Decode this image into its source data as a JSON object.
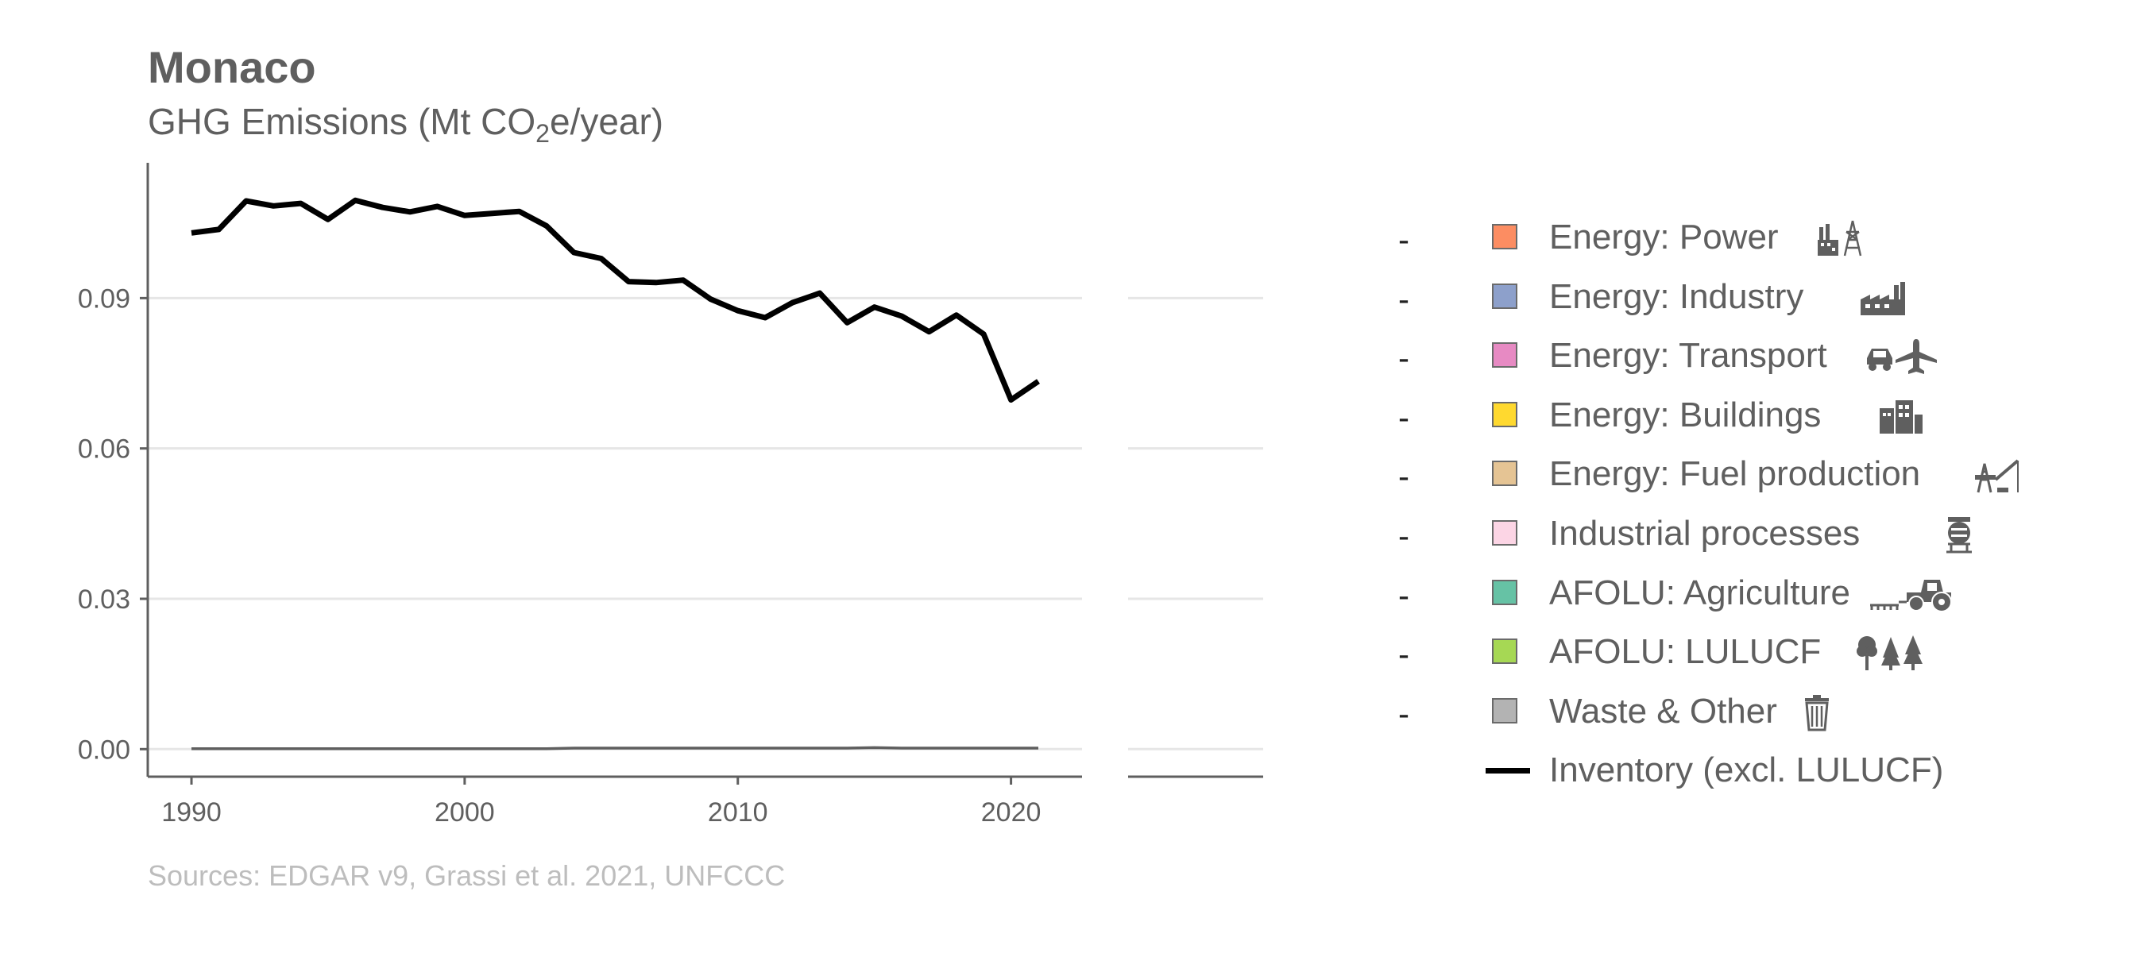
{
  "header": {
    "title": "Monaco",
    "subtitle_prefix": "GHG Emissions (Mt CO",
    "subtitle_sub": "2",
    "subtitle_suffix": "e/year)"
  },
  "footer": {
    "source": "Sources: EDGAR v9, Grassi et al. 2021, UNFCCC"
  },
  "legend": {
    "items": [
      {
        "dash": "-",
        "label": "Energy: Power",
        "color": "#fc8d62",
        "icon": "power-plant-icon"
      },
      {
        "dash": "-",
        "label": "Energy: Industry",
        "color": "#8da0cb",
        "icon": "factory-icon"
      },
      {
        "dash": "-",
        "label": "Energy: Transport",
        "color": "#e78ac3",
        "icon": "car-plane-icon"
      },
      {
        "dash": "-",
        "label": "Energy: Buildings",
        "color": "#ffd92f",
        "icon": "buildings-icon"
      },
      {
        "dash": "-",
        "label": "Energy: Fuel production",
        "color": "#e5c494",
        "icon": "oil-rig-icon"
      },
      {
        "dash": "-",
        "label": "Industrial processes",
        "color": "#fcd5e5",
        "icon": "cement-mixer-icon"
      },
      {
        "dash": "-",
        "label": "AFOLU: Agriculture",
        "color": "#66c2a5",
        "icon": "tractor-icon"
      },
      {
        "dash": "-",
        "label": "AFOLU: LULUCF",
        "color": "#a6d854",
        "icon": "trees-icon"
      },
      {
        "dash": "-",
        "label": "Waste & Other",
        "color": "#b3b3b3",
        "icon": "trash-icon"
      }
    ],
    "inventory_label": "Inventory (excl. LULUCF)"
  },
  "chart_data": {
    "type": "line",
    "title": "Monaco",
    "subtitle": "GHG Emissions (Mt CO2e/year)",
    "xlabel": "",
    "ylabel": "",
    "xlim": [
      1988.4,
      2022.6
    ],
    "ylim": [
      -0.0055,
      0.117
    ],
    "x_ticks": [
      1990,
      2000,
      2010,
      2020
    ],
    "y_ticks": [
      0.0,
      0.03,
      0.06,
      0.09
    ],
    "y_tick_labels": [
      "0.00",
      "0.03",
      "0.06",
      "0.09"
    ],
    "grid": "horizontal major",
    "legend_position": "right",
    "x": [
      1990,
      1991,
      1992,
      1993,
      1994,
      1995,
      1996,
      1997,
      1998,
      1999,
      2000,
      2001,
      2002,
      2003,
      2004,
      2005,
      2006,
      2007,
      2008,
      2009,
      2010,
      2011,
      2012,
      2013,
      2014,
      2015,
      2016,
      2017,
      2018,
      2019,
      2020,
      2021
    ],
    "series": [
      {
        "name": "Inventory (excl. LULUCF)",
        "color": "#000000",
        "values": [
          0.103,
          0.1037,
          0.1094,
          0.1084,
          0.1089,
          0.1057,
          0.1095,
          0.1081,
          0.1072,
          0.1083,
          0.1065,
          0.1069,
          0.1073,
          0.1044,
          0.0991,
          0.0979,
          0.0933,
          0.0931,
          0.0936,
          0.0898,
          0.0875,
          0.0861,
          0.0891,
          0.091,
          0.0851,
          0.0882,
          0.0864,
          0.0833,
          0.0866,
          0.0828,
          0.0697,
          0.0734
        ]
      },
      {
        "name": "Waste & Other",
        "color": "#5f5f5f",
        "values": [
          0.0001,
          0.0001,
          0.0001,
          0.0001,
          0.0001,
          0.0001,
          0.0001,
          0.0001,
          0.0001,
          0.0001,
          0.0001,
          0.0001,
          0.0001,
          0.0001,
          0.0002,
          0.0002,
          0.0002,
          0.0002,
          0.0002,
          0.0002,
          0.0002,
          0.0002,
          0.0002,
          0.0002,
          0.0002,
          0.0003,
          0.0002,
          0.0002,
          0.0002,
          0.0002,
          0.0002,
          0.0002
        ]
      }
    ]
  }
}
